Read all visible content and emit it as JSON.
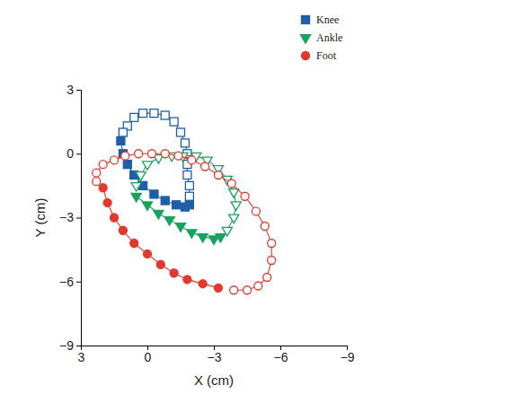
{
  "chart_data": {
    "type": "scatter",
    "x_label": "X (cm)",
    "y_label": "Y (cm)",
    "xlim": [
      3,
      -9
    ],
    "ylim": [
      -9,
      3
    ],
    "xticks": [
      3,
      0,
      {
        "value": -3,
        "label": "−3"
      },
      {
        "value": -6,
        "label": "−6"
      },
      {
        "value": -9,
        "label": "−9"
      }
    ],
    "yticks": [
      {
        "value": -9,
        "label": "−9"
      },
      {
        "value": -6,
        "label": "−6"
      },
      {
        "value": -3,
        "label": "−3"
      },
      0,
      3
    ],
    "legend": "top-right",
    "series": [
      {
        "name": "Knee",
        "color": "#1f5fa8",
        "marker": "square",
        "line_style": "solid",
        "x": [
          1.2,
          1.1,
          0.9,
          0.6,
          0.2,
          -0.3,
          -0.8,
          -1.3,
          -1.7,
          -1.9
        ],
        "values": [
          0.6,
          0.0,
          -0.5,
          -1.0,
          -1.5,
          -1.9,
          -2.2,
          -2.4,
          -2.5,
          -2.4
        ]
      },
      {
        "color": "#1f5fa8",
        "marker": "square-open",
        "line_style": "solid",
        "x": [
          -1.9,
          -1.9,
          -1.8,
          -1.8,
          -1.8,
          -1.7,
          -1.5,
          -1.2,
          -0.8,
          -0.3,
          0.2,
          0.6,
          0.9,
          1.1
        ],
        "values": [
          -2.0,
          -1.5,
          -1.0,
          -0.5,
          0.0,
          0.5,
          1.0,
          1.5,
          1.8,
          1.9,
          1.9,
          1.7,
          1.3,
          1.0
        ]
      },
      {
        "name": "Ankle",
        "color": "#17a35e",
        "marker": "triangle",
        "line_style": "solid",
        "x": [
          0.5,
          0.0,
          -0.5,
          -1.0,
          -1.5,
          -2.0,
          -2.5,
          -3.0,
          -3.3
        ],
        "values": [
          -2.0,
          -2.4,
          -2.8,
          -3.1,
          -3.4,
          -3.7,
          -3.9,
          -4.0,
          -3.9
        ]
      },
      {
        "color": "#17a35e",
        "marker": "triangle-open",
        "line_style": "solid",
        "x": [
          -3.6,
          -3.9,
          -4.0,
          -3.9,
          -3.6,
          -3.2,
          -2.7,
          -2.2,
          -1.6,
          -1.1,
          -0.5,
          0.0,
          0.3,
          0.5
        ],
        "values": [
          -3.6,
          -3.0,
          -2.4,
          -1.8,
          -1.2,
          -0.7,
          -0.3,
          -0.1,
          -0.1,
          -0.1,
          -0.2,
          -0.5,
          -1.0,
          -1.5
        ]
      },
      {
        "name": "Foot",
        "color": "#e0392e",
        "marker": "circle",
        "line_style": "solid",
        "x": [
          2.0,
          1.8,
          1.5,
          1.1,
          0.6,
          0.0,
          -0.6,
          -1.2,
          -1.8,
          -2.5,
          -3.2
        ],
        "values": [
          -1.6,
          -2.3,
          -3.0,
          -3.6,
          -4.2,
          -4.7,
          -5.2,
          -5.6,
          -5.9,
          -6.1,
          -6.3
        ]
      },
      {
        "color": "#e0392e",
        "marker": "circle-open",
        "line_style": "solid",
        "x": [
          -3.9,
          -4.5,
          -5.0,
          -5.4,
          -5.6,
          -5.6,
          -5.3,
          -4.9,
          -4.4,
          -3.8,
          -3.2,
          -2.6,
          -2.0,
          -1.4,
          -0.8,
          -0.2,
          0.4,
          1.0,
          1.5,
          2.0,
          2.3,
          2.3
        ],
        "values": [
          -6.4,
          -6.4,
          -6.2,
          -5.8,
          -5.0,
          -4.2,
          -3.4,
          -2.7,
          -2.0,
          -1.4,
          -1.0,
          -0.6,
          -0.3,
          -0.1,
          0.0,
          0.0,
          0.0,
          -0.1,
          -0.3,
          -0.5,
          -0.9,
          -1.3
        ]
      }
    ]
  }
}
